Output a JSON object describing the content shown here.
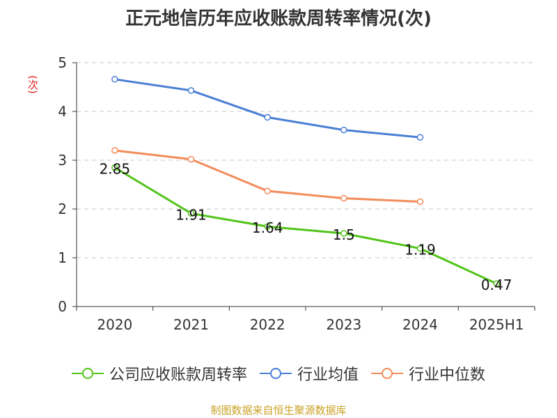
{
  "chart_data": {
    "type": "line",
    "title": "正元地信历年应收账款周转率情况(次)",
    "ylabel": "(次)",
    "categories": [
      "2020",
      "2021",
      "2022",
      "2023",
      "2024",
      "2025H1"
    ],
    "yticks": [
      "0",
      "1",
      "2",
      "3",
      "4",
      "5"
    ],
    "ylim": [
      0,
      5
    ],
    "grid": true,
    "legend_position": "bottom",
    "series": [
      {
        "name": "公司应收账款周转率",
        "color": "#52c41a",
        "values": [
          2.85,
          1.91,
          1.64,
          1.5,
          1.19,
          0.47
        ],
        "labels": [
          "2.85",
          "1.91",
          "1.64",
          "1.5",
          "1.19",
          "0.47"
        ]
      },
      {
        "name": "行业均值",
        "color": "#4a7fd4",
        "values": [
          4.66,
          4.43,
          3.88,
          3.62,
          3.47,
          null
        ]
      },
      {
        "name": "行业中位数",
        "color": "#f28c5a",
        "values": [
          3.2,
          3.02,
          2.37,
          2.22,
          2.15,
          null
        ]
      }
    ],
    "source": "制图数据来自恒生聚源数据库"
  }
}
